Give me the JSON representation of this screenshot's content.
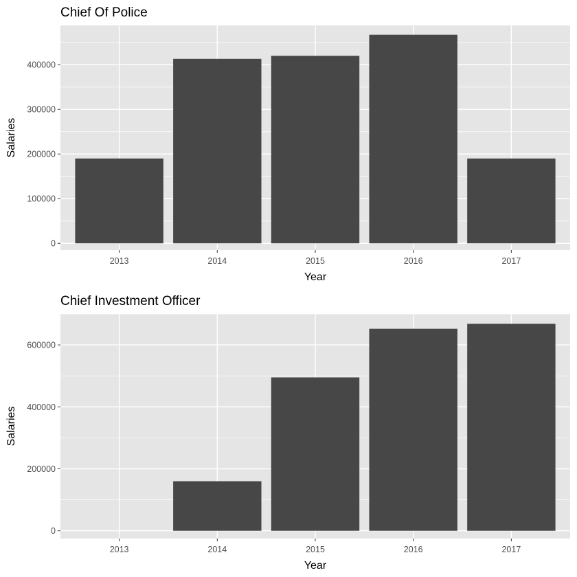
{
  "chart_data": [
    {
      "type": "bar",
      "title": "Chief Of Police",
      "xlabel": "Year",
      "ylabel": "Salaries",
      "categories": [
        "2013",
        "2014",
        "2015",
        "2016",
        "2017"
      ],
      "values": [
        190000,
        413000,
        420000,
        467000,
        190000
      ],
      "ylim": [
        -15000,
        488000
      ],
      "yticks": [
        0,
        100000,
        200000,
        300000,
        400000
      ],
      "ytick_labels": [
        "0",
        "100000",
        "200000",
        "300000",
        "400000"
      ],
      "grid": true
    },
    {
      "type": "bar",
      "title": "Chief Investment Officer",
      "xlabel": "Year",
      "ylabel": "Salaries",
      "categories": [
        "2013",
        "2014",
        "2015",
        "2016",
        "2017"
      ],
      "values": [
        0,
        160000,
        495000,
        652000,
        668000
      ],
      "ylim": [
        -25000,
        700000
      ],
      "yticks": [
        0,
        200000,
        400000,
        600000
      ],
      "ytick_labels": [
        "0",
        "200000",
        "400000",
        "600000"
      ],
      "grid": true
    }
  ],
  "colors": {
    "panel_bg": "#e5e5e5",
    "grid_major": "#ffffff",
    "bar_fill": "#474747",
    "tick_text": "#4d4d4d"
  }
}
